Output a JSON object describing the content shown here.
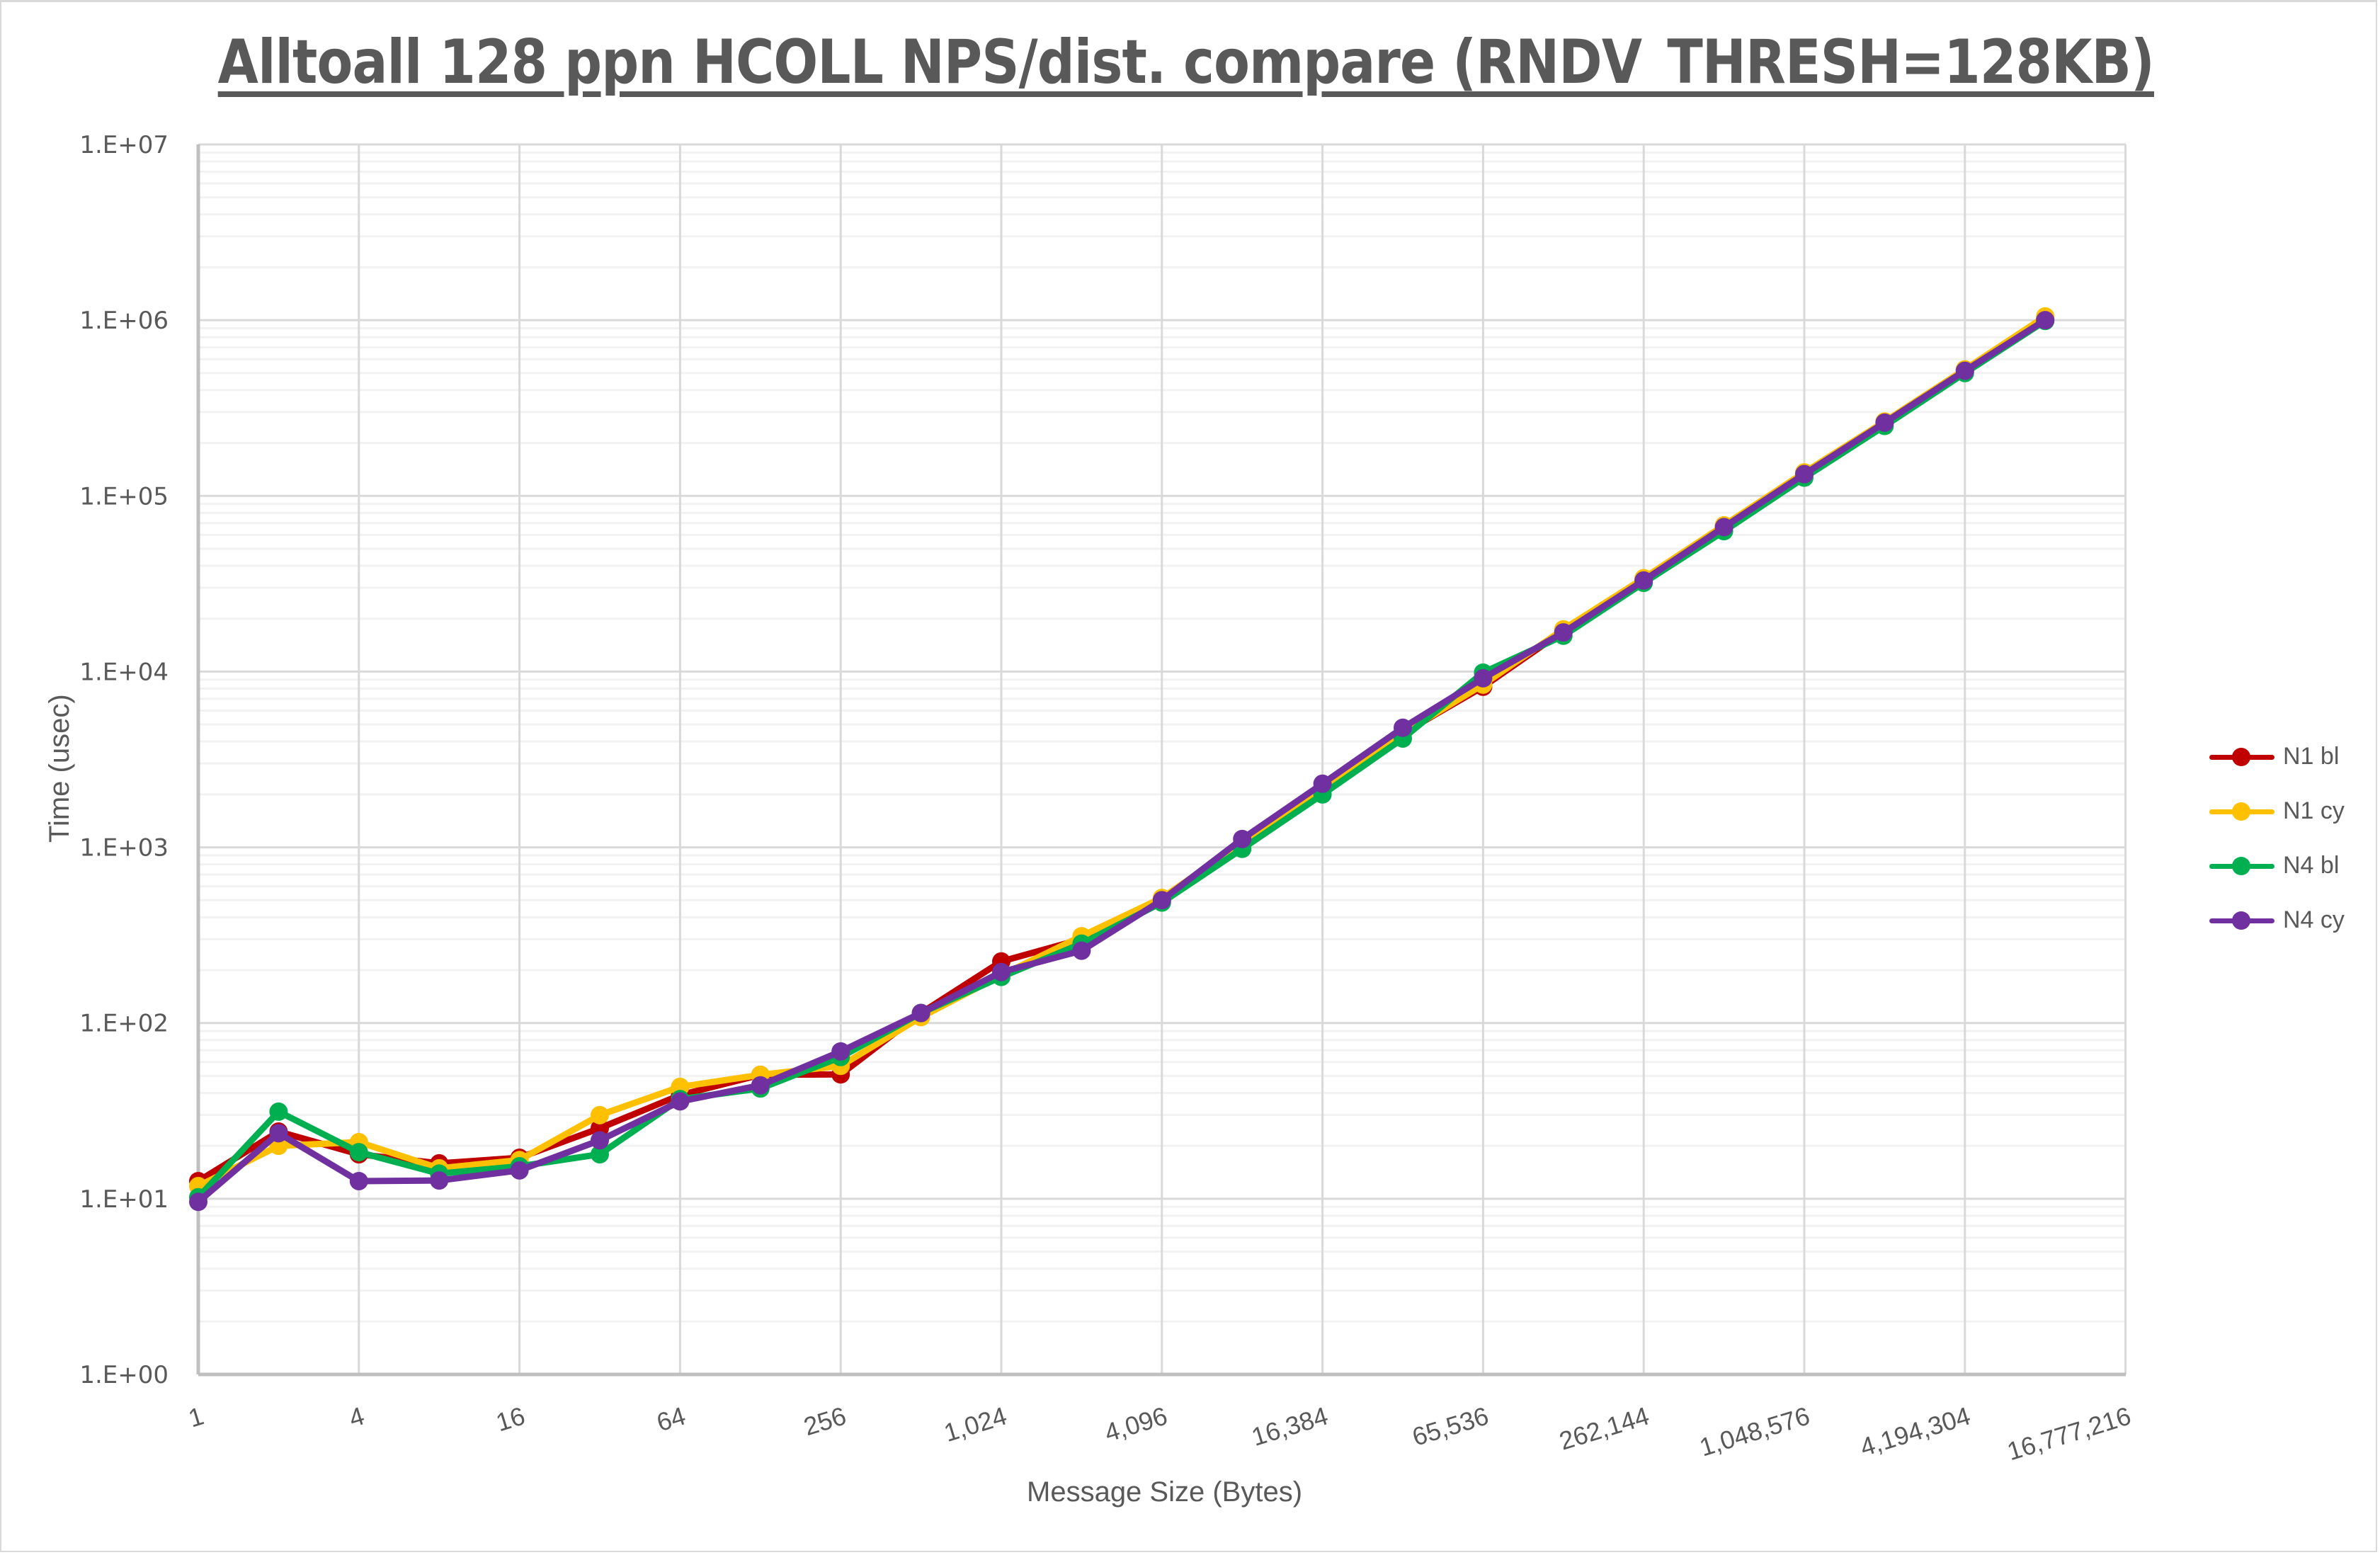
{
  "chart_title": "Alltoall 128 ppn HCOLL NPS/dist. compare (RNDV_THRESH=128KB)",
  "chart_data": {
    "type": "line",
    "title": "Alltoall 128 ppn HCOLL NPS/dist. compare (RNDV_THRESH=128KB)",
    "xlabel": "Message Size (Bytes)",
    "ylabel": "Time (usec)",
    "yscale": "log",
    "ylim": [
      1,
      10000000
    ],
    "y_tick_labels": [
      "1.E+00",
      "1.E+01",
      "1.E+02",
      "1.E+03",
      "1.E+04",
      "1.E+05",
      "1.E+06",
      "1.E+07"
    ],
    "x_tick_labels": [
      "1",
      "4",
      "16",
      "64",
      "256",
      "1,024",
      "4,096",
      "16,384",
      "65,536",
      "262,144",
      "1,048,576",
      "4,194,304",
      "16,777,216"
    ],
    "grid": {
      "major_horizontal": true,
      "minor_horizontal": true,
      "vertical": true
    },
    "legend_position": "right",
    "x": [
      1,
      2,
      4,
      8,
      16,
      32,
      64,
      128,
      256,
      512,
      1024,
      2048,
      4096,
      8192,
      16384,
      32768,
      65536,
      131072,
      262144,
      524288,
      1048576,
      2097152,
      4194304,
      8388608
    ],
    "series": [
      {
        "name": "N1 bl",
        "color": "#C00000",
        "values": [
          12.6,
          24.1,
          17.9,
          15.9,
          17.1,
          25.2,
          38.9,
          50.7,
          51,
          114,
          224,
          300,
          507,
          1060,
          2150,
          4450,
          8200,
          17000,
          33500,
          67000,
          134000,
          263000,
          520000,
          1020000
        ]
      },
      {
        "name": "N1 cy",
        "color": "#FFC000",
        "values": [
          11.8,
          20.0,
          21.0,
          14.9,
          16.6,
          29.9,
          43.3,
          50.7,
          57,
          108,
          187,
          312,
          515,
          1060,
          2150,
          4450,
          8430,
          17400,
          34000,
          68000,
          136000,
          265000,
          525000,
          1050000
        ]
      },
      {
        "name": "N4 bl",
        "color": "#00B050",
        "values": [
          10.2,
          31.3,
          18.4,
          13.9,
          15.3,
          17.9,
          36.9,
          42.4,
          64,
          114,
          183,
          283,
          485,
          980,
          2000,
          4160,
          9870,
          16000,
          32000,
          63000,
          127000,
          250000,
          500000,
          990000
        ]
      },
      {
        "name": "N4 cy",
        "color": "#7030A0",
        "values": [
          9.6,
          23.6,
          12.6,
          12.7,
          14.5,
          21.5,
          35.8,
          44.2,
          68.9,
          114,
          195,
          258,
          500,
          1115,
          2300,
          4790,
          9160,
          16700,
          33000,
          66400,
          133000,
          261000,
          515000,
          1000000
        ]
      }
    ]
  },
  "axes": {
    "xlabel": "Message Size (Bytes)",
    "ylabel": "Time (usec)"
  },
  "legend": [
    {
      "label": "N1 bl",
      "color": "#C00000"
    },
    {
      "label": "N1 cy",
      "color": "#FFC000"
    },
    {
      "label": "N4 bl",
      "color": "#00B050"
    },
    {
      "label": "N4 cy",
      "color": "#7030A0"
    }
  ]
}
